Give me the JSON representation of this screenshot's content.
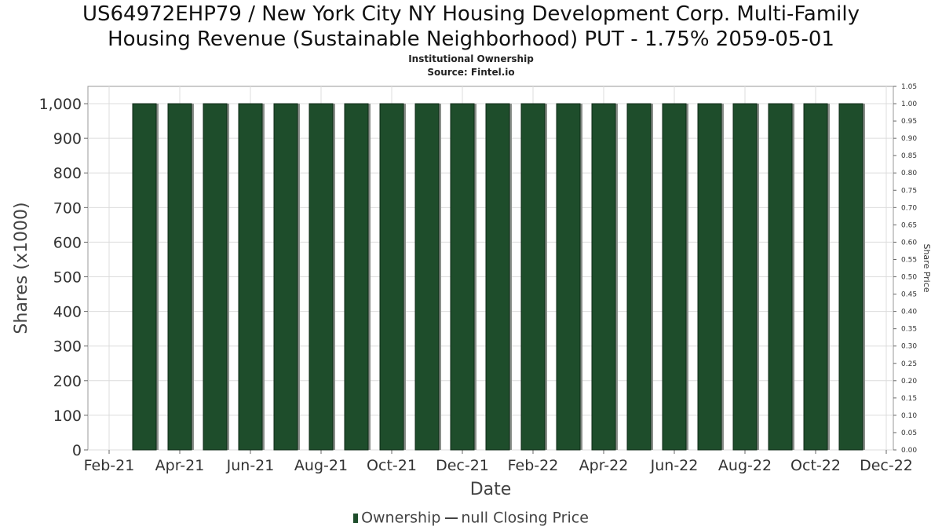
{
  "header": {
    "title_line1": "US64972EHP79 / New York City NY Housing Development Corp. Multi-Family",
    "title_line2": "Housing Revenue (Sustainable Neighborhood) PUT - 1.75% 2059-05-01",
    "subtitle": "Institutional Ownership",
    "source": "Source: Fintel.io"
  },
  "legend": {
    "ownership": "Ownership",
    "price": "null Closing Price"
  },
  "colors": {
    "bar": "#1e4d2b",
    "bar_shadow": "#8a8f8a",
    "grid": "#dcdcdc"
  },
  "chart_data": {
    "type": "bar",
    "xlabel": "Date",
    "ylabel": "Shares (x1000)",
    "y2label": "Share Price",
    "ylim": [
      0,
      1050
    ],
    "y2lim": [
      0,
      1.05
    ],
    "yticks": [
      "0",
      "100",
      "200",
      "300",
      "400",
      "500",
      "600",
      "700",
      "800",
      "900",
      "1,000"
    ],
    "y2ticks": [
      "0.00",
      "0.05",
      "0.10",
      "0.15",
      "0.20",
      "0.25",
      "0.30",
      "0.35",
      "0.40",
      "0.45",
      "0.50",
      "0.55",
      "0.60",
      "0.65",
      "0.70",
      "0.75",
      "0.80",
      "0.85",
      "0.90",
      "0.95",
      "1.00",
      "1.05"
    ],
    "xticks": [
      "Feb-21",
      "Apr-21",
      "Jun-21",
      "Aug-21",
      "Oct-21",
      "Dec-21",
      "Feb-22",
      "Apr-22",
      "Jun-22",
      "Aug-22",
      "Oct-22",
      "Dec-22"
    ],
    "grid": true,
    "legend_position": "bottom",
    "series": [
      {
        "name": "Ownership",
        "categories": [
          "2021-03",
          "2021-04",
          "2021-05",
          "2021-06",
          "2021-07",
          "2021-08",
          "2021-09",
          "2021-10",
          "2021-11",
          "2021-12",
          "2022-01",
          "2022-02",
          "2022-03",
          "2022-04",
          "2022-05",
          "2022-06",
          "2022-07",
          "2022-08",
          "2022-09",
          "2022-10",
          "2022-11"
        ],
        "values": [
          1000,
          1000,
          1000,
          1000,
          1000,
          1000,
          1000,
          1000,
          1000,
          1000,
          1000,
          1000,
          1000,
          1000,
          1000,
          1000,
          1000,
          1000,
          1000,
          1000,
          1000
        ]
      }
    ]
  }
}
